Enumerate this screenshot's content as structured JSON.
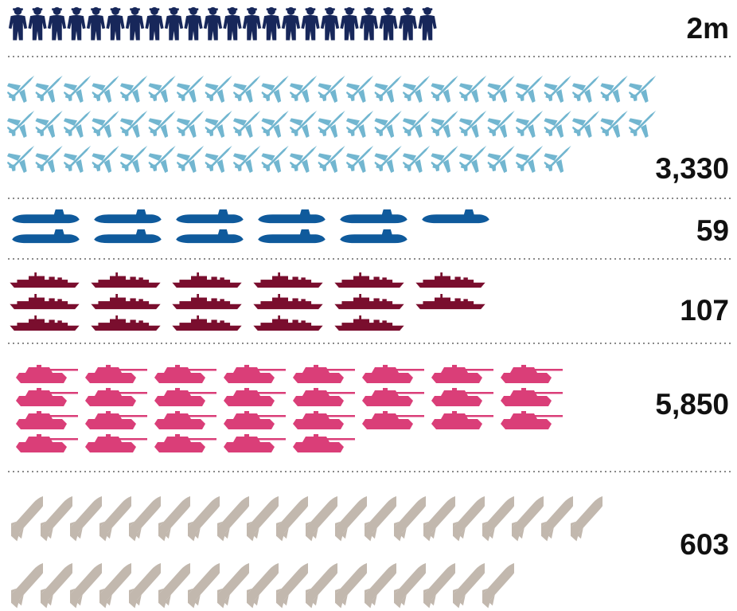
{
  "chart_data": {
    "type": "pictogram",
    "categories": [
      "Personnel",
      "Aircraft",
      "Submarines",
      "Warships",
      "Tanks",
      "Missiles"
    ],
    "values": [
      2000000,
      3330,
      59,
      107,
      5850,
      603
    ],
    "value_labels": [
      "2m",
      "3,330",
      "59",
      "107",
      "5,850",
      "603"
    ],
    "icons": [
      "soldier-icon",
      "fighter-jet-icon",
      "submarine-icon",
      "warship-icon",
      "tank-icon",
      "missile-icon"
    ],
    "colors": [
      "#17275a",
      "#72b6d0",
      "#0f5a9c",
      "#7a0e2e",
      "#da3e78",
      "#c2b8ae"
    ],
    "icon_counts": [
      22.5,
      66.7,
      11.8,
      17.8,
      29.3,
      37.7
    ]
  }
}
